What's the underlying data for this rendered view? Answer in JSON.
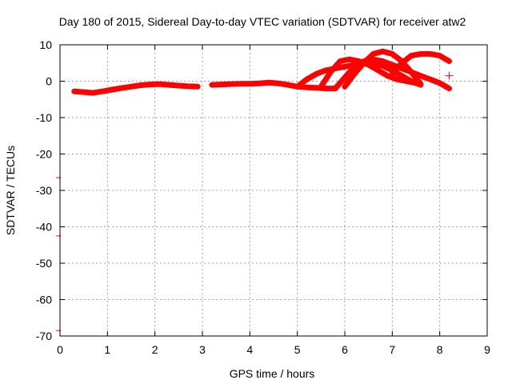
{
  "chart_data": {
    "type": "scatter",
    "title": "Day 180 of 2015, Sidereal Day-to-day VTEC variation (SDTVAR) for receiver atw2",
    "xlabel": "GPS time / hours",
    "ylabel": "SDTVAR / TECUs",
    "xlim": [
      0,
      9
    ],
    "ylim": [
      -70,
      10
    ],
    "xticks": [
      "0",
      "1",
      "2",
      "3",
      "4",
      "5",
      "6",
      "7",
      "8",
      "9"
    ],
    "yticks": [
      "10",
      "0",
      "-10",
      "-20",
      "-30",
      "-40",
      "-50",
      "-60",
      "-70"
    ],
    "grid": true,
    "legend": "none",
    "color": "#ff0000",
    "series": [
      {
        "x": [
          0.3,
          0.5,
          0.7,
          0.9,
          1.1,
          1.3,
          1.5,
          1.7,
          1.9,
          2.1,
          2.3,
          2.5,
          2.7,
          2.9
        ],
        "y": [
          -2.8,
          -3.0,
          -3.2,
          -2.8,
          -2.3,
          -1.9,
          -1.5,
          -1.1,
          -0.9,
          -0.8,
          -1.0,
          -1.2,
          -1.4,
          -1.5
        ]
      },
      {
        "x": [
          3.2,
          3.4,
          3.6,
          3.8,
          4.0,
          4.2,
          4.4,
          4.6,
          4.8,
          5.0,
          5.2,
          5.4,
          5.6,
          5.8
        ],
        "y": [
          -1.0,
          -0.9,
          -0.8,
          -0.7,
          -0.7,
          -0.6,
          -0.4,
          -0.6,
          -1.0,
          -1.5,
          -1.7,
          -1.8,
          -2.0,
          -2.0
        ]
      },
      {
        "x": [
          5.0,
          5.2,
          5.4,
          5.6,
          5.8,
          6.0,
          6.2,
          6.4,
          6.6,
          6.8,
          7.0,
          7.2,
          7.4,
          7.6
        ],
        "y": [
          -1.5,
          0.5,
          2.0,
          3.0,
          3.5,
          4.0,
          4.5,
          5.0,
          4.8,
          4.2,
          3.0,
          1.5,
          0.0,
          -1.0
        ]
      },
      {
        "x": [
          5.5,
          5.7,
          5.9,
          6.1,
          6.3,
          6.5,
          6.7,
          6.9,
          7.1,
          7.3,
          7.5
        ],
        "y": [
          -1.5,
          2.5,
          5.5,
          6.0,
          5.5,
          4.5,
          3.0,
          1.5,
          0.5,
          0.0,
          -0.5
        ]
      },
      {
        "x": [
          5.8,
          6.0,
          6.2,
          6.4,
          6.6,
          6.8,
          7.0,
          7.2,
          7.4,
          7.6,
          7.8,
          8.0,
          8.2
        ],
        "y": [
          -2.0,
          1.0,
          4.0,
          5.5,
          6.0,
          5.5,
          4.5,
          3.5,
          2.5,
          1.5,
          0.5,
          -0.5,
          -2.0
        ]
      },
      {
        "x": [
          6.0,
          6.2,
          6.4,
          6.6,
          6.8,
          7.0,
          7.2,
          7.4,
          7.6
        ],
        "y": [
          -1.5,
          2.0,
          5.0,
          7.5,
          8.2,
          7.5,
          5.5,
          2.5,
          -0.8
        ]
      },
      {
        "x": [
          7.0,
          7.2,
          7.4,
          7.6,
          7.8,
          8.0,
          8.2
        ],
        "y": [
          2.0,
          5.0,
          7.0,
          7.5,
          7.5,
          7.0,
          5.5
        ]
      }
    ],
    "extra_points": [
      {
        "x": 8.2,
        "y": 1.5
      },
      {
        "x": -0.03,
        "y": -26.5
      },
      {
        "x": -0.03,
        "y": -42.5
      },
      {
        "x": -0.03,
        "y": -68.5
      }
    ]
  }
}
